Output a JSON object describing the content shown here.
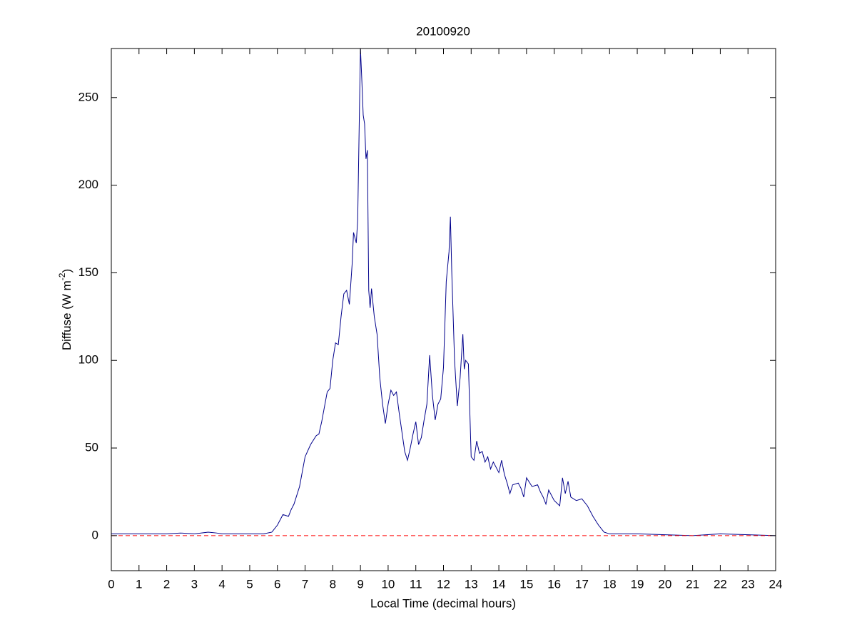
{
  "chart_data": {
    "type": "line",
    "title": "20100920",
    "xlabel": "Local Time (decimal hours)",
    "ylabel": [
      "Diffuse (W m",
      "-2",
      ")"
    ],
    "xlim": [
      0,
      24
    ],
    "ylim": [
      -20,
      278
    ],
    "xticks": [
      0,
      1,
      2,
      3,
      4,
      5,
      6,
      7,
      8,
      9,
      10,
      11,
      12,
      13,
      14,
      15,
      16,
      17,
      18,
      19,
      20,
      21,
      22,
      23,
      24
    ],
    "yticks": [
      0,
      50,
      100,
      150,
      200,
      250
    ],
    "series": [
      {
        "color": "#00008b",
        "style": "solid",
        "x": [
          0,
          1,
          2,
          2.5,
          3,
          3.5,
          3.8,
          4,
          4.5,
          5,
          5.5,
          5.8,
          6,
          6.2,
          6.4,
          6.5,
          6.6,
          6.8,
          7,
          7.2,
          7.4,
          7.5,
          7.6,
          7.8,
          7.9,
          8,
          8.1,
          8.2,
          8.3,
          8.4,
          8.5,
          8.6,
          8.7,
          8.75,
          8.85,
          8.9,
          9,
          9.05,
          9.1,
          9.15,
          9.2,
          9.25,
          9.3,
          9.35,
          9.4,
          9.5,
          9.6,
          9.7,
          9.8,
          9.9,
          10,
          10.1,
          10.2,
          10.3,
          10.4,
          10.6,
          10.7,
          10.8,
          10.9,
          11,
          11.1,
          11.2,
          11.3,
          11.4,
          11.5,
          11.6,
          11.7,
          11.8,
          11.9,
          12,
          12.1,
          12.2,
          12.25,
          12.3,
          12.4,
          12.5,
          12.6,
          12.7,
          12.75,
          12.8,
          12.9,
          13,
          13.1,
          13.2,
          13.3,
          13.4,
          13.5,
          13.6,
          13.7,
          13.8,
          14,
          14.1,
          14.2,
          14.3,
          14.4,
          14.5,
          14.7,
          14.8,
          14.9,
          15,
          15.2,
          15.4,
          15.5,
          15.6,
          15.7,
          15.8,
          16,
          16.2,
          16.3,
          16.4,
          16.5,
          16.6,
          16.8,
          17,
          17.2,
          17.4,
          17.6,
          17.8,
          18,
          19,
          20,
          21,
          22,
          23,
          24
        ],
        "values": [
          1,
          1,
          1,
          1.5,
          1,
          2,
          1.5,
          1,
          1,
          1,
          1,
          2,
          6,
          12,
          11,
          15,
          18,
          28,
          45,
          52,
          57,
          58,
          65,
          82,
          84,
          100,
          110,
          109,
          125,
          138,
          140,
          132,
          155,
          173,
          167,
          180,
          278,
          260,
          240,
          235,
          215,
          220,
          140,
          130,
          141,
          125,
          115,
          90,
          75,
          64,
          75,
          83,
          80,
          82,
          70,
          48,
          43,
          50,
          58,
          65,
          52,
          56,
          66,
          75,
          103,
          80,
          66,
          75,
          78,
          96,
          145,
          162,
          182,
          150,
          100,
          74,
          90,
          115,
          95,
          100,
          98,
          45,
          43,
          54,
          47,
          48,
          42,
          45,
          38,
          42,
          36,
          43,
          35,
          30,
          24,
          29,
          30,
          27,
          22,
          33,
          28,
          29,
          25,
          22,
          18,
          26,
          20,
          17,
          33,
          24,
          31,
          22,
          20,
          21,
          17,
          11,
          6,
          2,
          1,
          1,
          0.5,
          0,
          1,
          0.5,
          0
        ]
      },
      {
        "color": "#ff0000",
        "style": "dashed",
        "x": [
          0,
          24
        ],
        "values": [
          0,
          0
        ]
      }
    ]
  }
}
